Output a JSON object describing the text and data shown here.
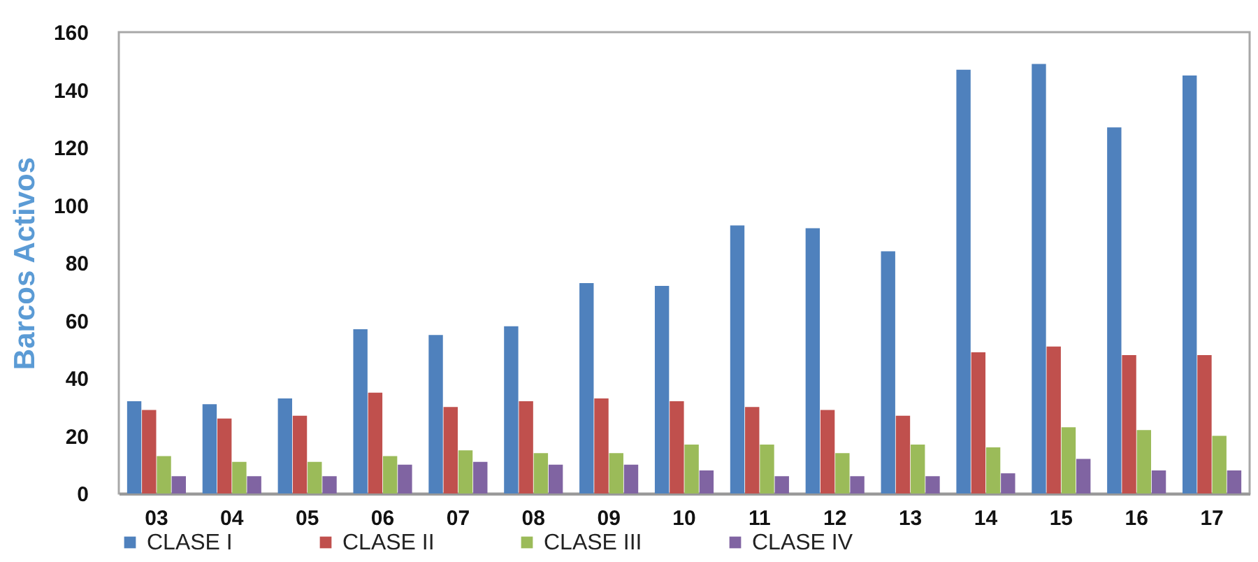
{
  "chart_data": {
    "type": "bar",
    "ylabel": "Barcos Activos",
    "categories": [
      "03",
      "04",
      "05",
      "06",
      "07",
      "08",
      "09",
      "10",
      "11",
      "12",
      "13",
      "14",
      "15",
      "16",
      "17"
    ],
    "series": [
      {
        "name": "CLASE I",
        "color": "#4f81bd",
        "values": [
          32,
          31,
          33,
          57,
          55,
          58,
          73,
          72,
          93,
          92,
          84,
          147,
          149,
          127,
          145
        ]
      },
      {
        "name": "CLASE II",
        "color": "#c0504d",
        "values": [
          29,
          26,
          27,
          35,
          30,
          32,
          33,
          32,
          30,
          29,
          27,
          49,
          51,
          48,
          48
        ]
      },
      {
        "name": "CLASE III",
        "color": "#9bbb59",
        "values": [
          13,
          11,
          11,
          13,
          15,
          14,
          14,
          17,
          17,
          14,
          17,
          16,
          23,
          22,
          20
        ]
      },
      {
        "name": "CLASE IV",
        "color": "#8064a2",
        "values": [
          6,
          6,
          6,
          10,
          11,
          10,
          10,
          8,
          6,
          6,
          6,
          7,
          12,
          8,
          8
        ]
      }
    ],
    "ylim": [
      0,
      160
    ],
    "yticks": [
      0,
      20,
      40,
      60,
      80,
      100,
      120,
      140,
      160
    ],
    "grid": false,
    "legend": "bottom"
  }
}
